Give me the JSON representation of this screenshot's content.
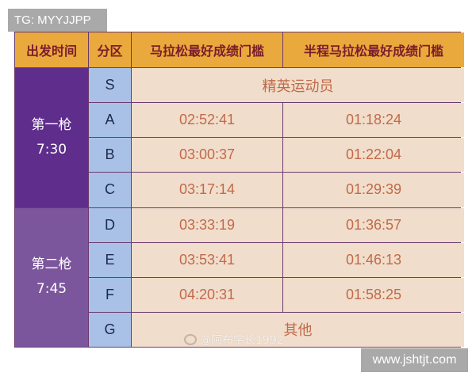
{
  "watermarks": {
    "top_left": "TG: MYYJJPP",
    "bottom_right": "www.jshtjt.com",
    "weibo": "@阿布学长1992"
  },
  "headers": [
    "出发时间",
    "分区",
    "马拉松最好成绩门槛",
    "半程马拉松最好成绩门槛"
  ],
  "groups": [
    {
      "name": "第一枪",
      "time": "7:30"
    },
    {
      "name": "第二枪",
      "time": "7:45"
    }
  ],
  "rows": [
    {
      "zone": "S",
      "merged": "精英运动员"
    },
    {
      "zone": "A",
      "full": "02:52:41",
      "half": "01:18:24"
    },
    {
      "zone": "B",
      "full": "03:00:37",
      "half": "01:22:04"
    },
    {
      "zone": "C",
      "full": "03:17:14",
      "half": "01:29:39"
    },
    {
      "zone": "D",
      "full": "03:33:19",
      "half": "01:36:57"
    },
    {
      "zone": "E",
      "full": "03:53:41",
      "half": "01:46:13"
    },
    {
      "zone": "F",
      "full": "04:20:31",
      "half": "01:58:25"
    },
    {
      "zone": "G",
      "merged": "其他"
    }
  ],
  "colors": {
    "header": "#eaa93c",
    "header_text": "#7a1c2c",
    "group1": "#5f2d8c",
    "group2": "#7c569c",
    "zone": "#a9c1e7",
    "cell": "#f1ddcb",
    "cell_text": "#c06a4a"
  }
}
